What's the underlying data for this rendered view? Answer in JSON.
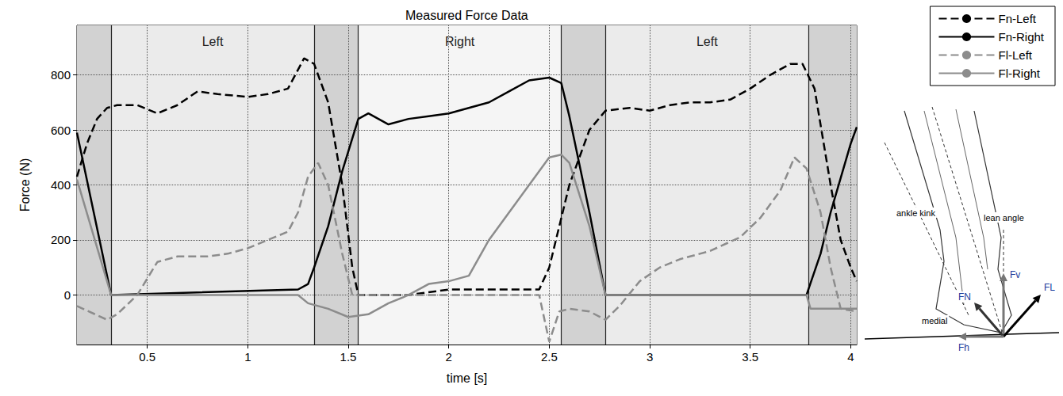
{
  "chart_data": {
    "type": "line",
    "title": "Measured Force Data",
    "x_label": "time [s]",
    "y_label": "Force (N)",
    "xlim": [
      0.15,
      4.03
    ],
    "ylim": [
      -180,
      980
    ],
    "xticks": [
      0.5,
      1,
      1.5,
      2,
      2.5,
      3,
      3.5,
      4
    ],
    "yticks": [
      0,
      200,
      400,
      600,
      800
    ],
    "grid": true,
    "legend": "upper right",
    "phases": [
      {
        "label": "Left",
        "start": 0.32,
        "end": 1.33
      },
      {
        "label": "Right",
        "start": 1.55,
        "end": 2.56
      },
      {
        "label": "Left",
        "start": 2.78,
        "end": 3.79
      }
    ],
    "double_support": [
      [
        0.15,
        0.32
      ],
      [
        1.33,
        1.55
      ],
      [
        2.56,
        2.78
      ],
      [
        3.79,
        4.03
      ]
    ],
    "series": [
      {
        "name": "Fn-Left",
        "color": "#000000",
        "line_style": "dashed",
        "x": [
          0.15,
          0.2,
          0.25,
          0.3,
          0.35,
          0.45,
          0.55,
          0.65,
          0.75,
          0.85,
          1.0,
          1.1,
          1.2,
          1.28,
          1.33,
          1.4,
          1.47,
          1.52,
          1.55,
          1.8,
          2.0,
          2.2,
          2.45,
          2.5,
          2.6,
          2.7,
          2.78,
          2.9,
          3.0,
          3.1,
          3.2,
          3.3,
          3.4,
          3.5,
          3.6,
          3.7,
          3.76,
          3.82,
          3.9,
          3.95,
          4.0,
          4.03
        ],
        "values": [
          430,
          550,
          640,
          680,
          690,
          690,
          660,
          690,
          740,
          730,
          720,
          730,
          750,
          860,
          840,
          700,
          400,
          100,
          0,
          0,
          20,
          20,
          20,
          100,
          400,
          600,
          670,
          680,
          670,
          690,
          700,
          700,
          710,
          750,
          800,
          840,
          840,
          750,
          400,
          200,
          100,
          50
        ]
      },
      {
        "name": "Fn-Right",
        "color": "#000000",
        "line_style": "solid",
        "x": [
          0.15,
          0.32,
          1.25,
          1.3,
          1.33,
          1.4,
          1.47,
          1.55,
          1.6,
          1.7,
          1.8,
          1.9,
          2.0,
          2.1,
          2.2,
          2.3,
          2.4,
          2.5,
          2.56,
          2.6,
          2.7,
          2.78,
          3.78,
          3.85,
          3.9,
          4.0,
          4.03
        ],
        "values": [
          590,
          0,
          20,
          40,
          100,
          250,
          450,
          640,
          660,
          620,
          640,
          650,
          660,
          680,
          700,
          740,
          780,
          790,
          770,
          650,
          300,
          0,
          0,
          150,
          300,
          550,
          610
        ]
      },
      {
        "name": "Fl-Left",
        "color": "#8c8c8c",
        "line_style": "dashed",
        "x": [
          0.15,
          0.3,
          0.35,
          0.45,
          0.55,
          0.65,
          0.8,
          0.9,
          1.0,
          1.1,
          1.2,
          1.25,
          1.3,
          1.35,
          1.4,
          1.47,
          1.52,
          2.45,
          2.5,
          2.55,
          2.6,
          2.7,
          2.78,
          2.85,
          2.95,
          3.05,
          3.15,
          3.3,
          3.45,
          3.55,
          3.65,
          3.72,
          3.78,
          3.85,
          3.9,
          3.95,
          4.03
        ],
        "values": [
          -40,
          -90,
          -70,
          0,
          120,
          140,
          140,
          150,
          170,
          200,
          230,
          300,
          430,
          480,
          400,
          150,
          0,
          0,
          -170,
          -60,
          -50,
          -60,
          -90,
          -40,
          50,
          100,
          130,
          160,
          210,
          280,
          380,
          500,
          460,
          300,
          100,
          -50,
          -60
        ]
      },
      {
        "name": "Fl-Right",
        "color": "#8c8c8c",
        "line_style": "solid",
        "x": [
          0.15,
          0.32,
          1.25,
          1.3,
          1.4,
          1.5,
          1.6,
          1.7,
          1.8,
          1.9,
          2.0,
          2.1,
          2.2,
          2.3,
          2.4,
          2.5,
          2.56,
          2.6,
          2.7,
          2.78,
          3.78,
          3.8,
          4.03
        ],
        "values": [
          420,
          0,
          0,
          -30,
          -50,
          -80,
          -70,
          -30,
          0,
          40,
          50,
          70,
          200,
          300,
          400,
          500,
          510,
          480,
          250,
          0,
          0,
          -50,
          -50
        ]
      }
    ],
    "diagram": {
      "ankle_kink": "ankle kink",
      "lean_angle": "lean angle",
      "fv": "Fv",
      "fn": "FN",
      "fl": "FL",
      "fh": "Fh",
      "medial": "medial"
    }
  }
}
